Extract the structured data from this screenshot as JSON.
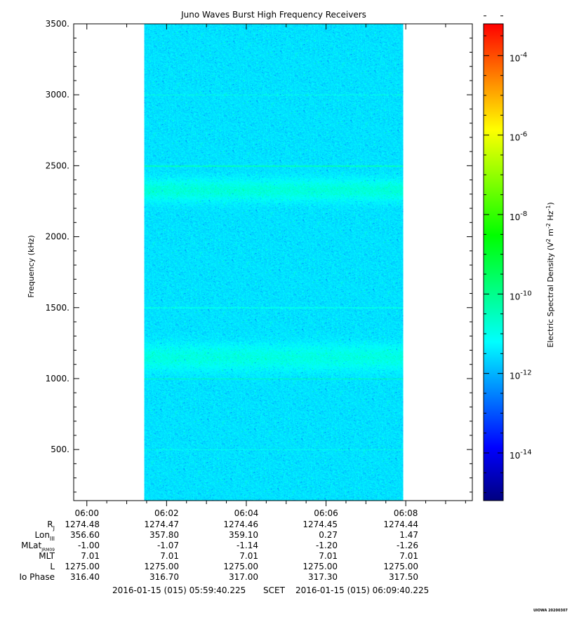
{
  "chart_data": {
    "type": "heatmap",
    "title": "Juno Waves Burst High Frequency Receivers",
    "ylabel": "Frequency (kHz)",
    "ylim": [
      140,
      3500
    ],
    "y_ticks": [
      "500.",
      "1000.",
      "1500.",
      "2000.",
      "2500.",
      "3000.",
      "3500."
    ],
    "y_tick_values": [
      500,
      1000,
      1500,
      2000,
      2500,
      3000,
      3500
    ],
    "x_ticks": [
      "06:00",
      "06:02",
      "06:04",
      "06:06",
      "06:08"
    ],
    "x_tick_minutes": [
      0.33,
      2.33,
      4.33,
      6.33,
      8.33
    ],
    "x_range_minutes": [
      0,
      10
    ],
    "data_span_minutes": [
      1.77,
      8.27
    ],
    "colorbar": {
      "label": "Electric Spectral Density (V",
      "label_sup1": "2",
      "label_mid": " m",
      "label_sup2": "-2",
      "label_mid2": " Hz",
      "label_sup3": "-1",
      "label_end": ")",
      "scale": "log",
      "range_exp": [
        -15.2,
        -3.2
      ],
      "tick_base": "10",
      "tick_exponents": [
        "-4",
        "-6",
        "-8",
        "-10",
        "-12",
        "-14"
      ],
      "tick_exp_values": [
        -4,
        -6,
        -8,
        -10,
        -12,
        -14
      ],
      "colormap": [
        "#000080",
        "#0000ff",
        "#0080ff",
        "#00ffff",
        "#00ff80",
        "#00ff00",
        "#80ff00",
        "#ffff00",
        "#ff8000",
        "#ff0000"
      ]
    },
    "background_level_exp": -11.5,
    "bands_kHz": [
      {
        "center": 1150,
        "width": 180,
        "level_exp": -10.9
      },
      {
        "center": 2330,
        "width": 150,
        "level_exp": -10.8
      }
    ],
    "lines_kHz": [
      {
        "freq": 1000,
        "level_exp": -10.3
      },
      {
        "freq": 2500,
        "level_exp": -10.5
      },
      {
        "freq": 3000,
        "level_exp": -10.9
      },
      {
        "freq": 1500,
        "level_exp": -11.0
      },
      {
        "freq": 500,
        "level_exp": -11.0
      }
    ]
  },
  "ephemeris": {
    "rows": [
      {
        "label": "R",
        "sub": "J",
        "values": [
          "1274.48",
          "1274.47",
          "1274.46",
          "1274.45",
          "1274.44"
        ]
      },
      {
        "label": "Lon",
        "sub": "III",
        "values": [
          "356.60",
          "357.80",
          "359.10",
          "0.27",
          "1.47"
        ]
      },
      {
        "label": "MLat",
        "sub": "JRM09",
        "values": [
          "-1.00",
          "-1.07",
          "-1.14",
          "-1.20",
          "-1.26"
        ]
      },
      {
        "label": "MLT",
        "sub": "",
        "values": [
          "7.01",
          "7.01",
          "7.01",
          "7.01",
          "7.01"
        ]
      },
      {
        "label": "L",
        "sub": "",
        "values": [
          "1275.00",
          "1275.00",
          "1275.00",
          "1275.00",
          "1275.00"
        ]
      },
      {
        "label": "Io Phase",
        "sub": "",
        "values": [
          "316.40",
          "316.70",
          "317.00",
          "317.30",
          "317.50"
        ]
      }
    ]
  },
  "footer": {
    "start": "2016-01-15 (015) 05:59:40.225",
    "frame": "SCET",
    "end": "2016-01-15 (015) 06:09:40.225",
    "credit": "UIOWA 20200307"
  }
}
